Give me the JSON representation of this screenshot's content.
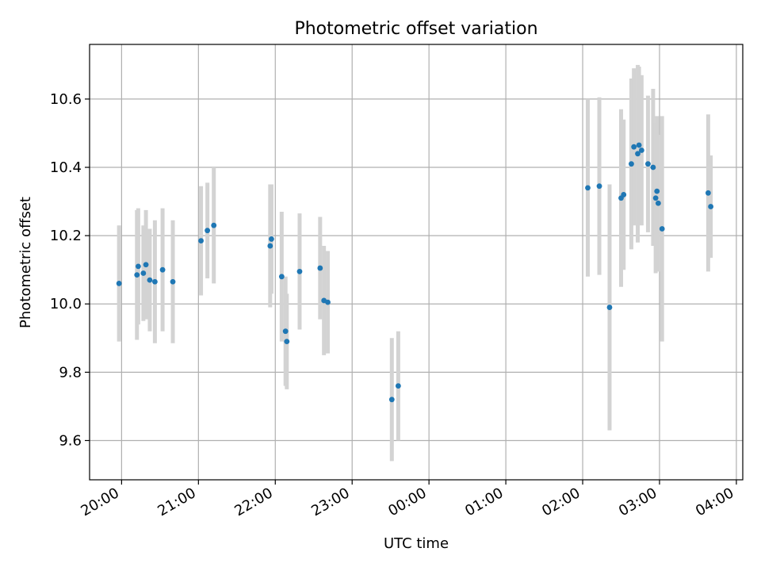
{
  "chart_data": {
    "type": "scatter",
    "title": "Photometric offset variation",
    "xlabel": "UTC time",
    "ylabel": "Photometric offset",
    "grid": true,
    "xlim": [
      "19:35",
      "04:05"
    ],
    "ylim": [
      9.485,
      10.76
    ],
    "x_ticks": [
      "20:00",
      "21:00",
      "22:00",
      "23:00",
      "00:00",
      "01:00",
      "02:00",
      "03:00",
      "04:00"
    ],
    "y_ticks": [
      "9.6",
      "9.8",
      "10.0",
      "10.2",
      "10.4",
      "10.6"
    ],
    "colors": {
      "points": "#1f77b4",
      "errorbars": "#d3d3d3",
      "grid": "#b0b0b0"
    },
    "series": [
      {
        "x": [
          "19:58",
          "20:12",
          "20:13",
          "20:17",
          "20:19",
          "20:22",
          "20:26",
          "20:32",
          "20:40",
          "21:02",
          "21:07",
          "21:12",
          "21:56",
          "21:57",
          "22:05",
          "22:08",
          "22:09",
          "22:19",
          "22:35",
          "22:38",
          "22:41",
          "23:31",
          "23:36",
          "02:04",
          "02:13",
          "02:21",
          "02:30",
          "02:32",
          "02:38",
          "02:40",
          "02:43",
          "02:44",
          "02:46",
          "02:51",
          "02:55",
          "02:57",
          "02:58",
          "02:59",
          "03:02",
          "03:38",
          "03:40"
        ],
        "y": [
          10.06,
          10.085,
          10.11,
          10.09,
          10.115,
          10.07,
          10.065,
          10.1,
          10.065,
          10.185,
          10.215,
          10.23,
          10.17,
          10.19,
          10.08,
          9.92,
          9.89,
          10.095,
          10.105,
          10.01,
          10.005,
          9.72,
          9.76,
          10.34,
          10.345,
          9.99,
          10.31,
          10.32,
          10.41,
          10.46,
          10.44,
          10.465,
          10.45,
          10.41,
          10.4,
          10.31,
          10.33,
          10.295,
          10.22,
          10.325,
          10.285
        ],
        "err": [
          0.17,
          0.19,
          0.17,
          0.14,
          0.16,
          0.15,
          0.18,
          0.18,
          0.18,
          0.16,
          0.14,
          0.17,
          0.18,
          0.16,
          0.19,
          0.16,
          0.14,
          0.17,
          0.15,
          0.16,
          0.15,
          0.18,
          0.16,
          0.26,
          0.26,
          0.36,
          0.26,
          0.22,
          0.25,
          0.23,
          0.26,
          0.23,
          0.22,
          0.2,
          0.23,
          0.22,
          0.22,
          0.2,
          0.33,
          0.23,
          0.15
        ]
      }
    ]
  }
}
